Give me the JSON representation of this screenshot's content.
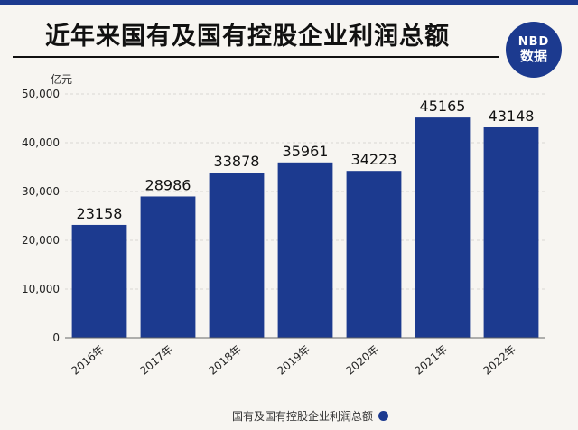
{
  "header": {
    "title": "近年来国有及国有控股企业利润总额",
    "logo_top": "NBD",
    "logo_bottom": "数据"
  },
  "colors": {
    "bar": "#1c3a8f",
    "background": "#f7f5f1"
  },
  "chart_data": {
    "type": "bar",
    "ylabel": "亿元",
    "categories": [
      "2016年",
      "2017年",
      "2018年",
      "2019年",
      "2020年",
      "2021年",
      "2022年"
    ],
    "series": [
      {
        "name": "国有及国有控股企业利润总额",
        "values": [
          23158,
          28986,
          33878,
          35961,
          34223,
          45165,
          43148
        ]
      }
    ],
    "data_labels": [
      "23158",
      "28986",
      "33878",
      "35961",
      "34223",
      "45165",
      "43148"
    ],
    "ylim": [
      0,
      50000
    ],
    "yticks": [
      0,
      10000,
      20000,
      30000,
      40000,
      50000
    ],
    "ytick_labels": [
      "0",
      "10,000",
      "20,000",
      "30,000",
      "40,000",
      "50,000"
    ],
    "grid": true,
    "legend_position": "bottom"
  }
}
